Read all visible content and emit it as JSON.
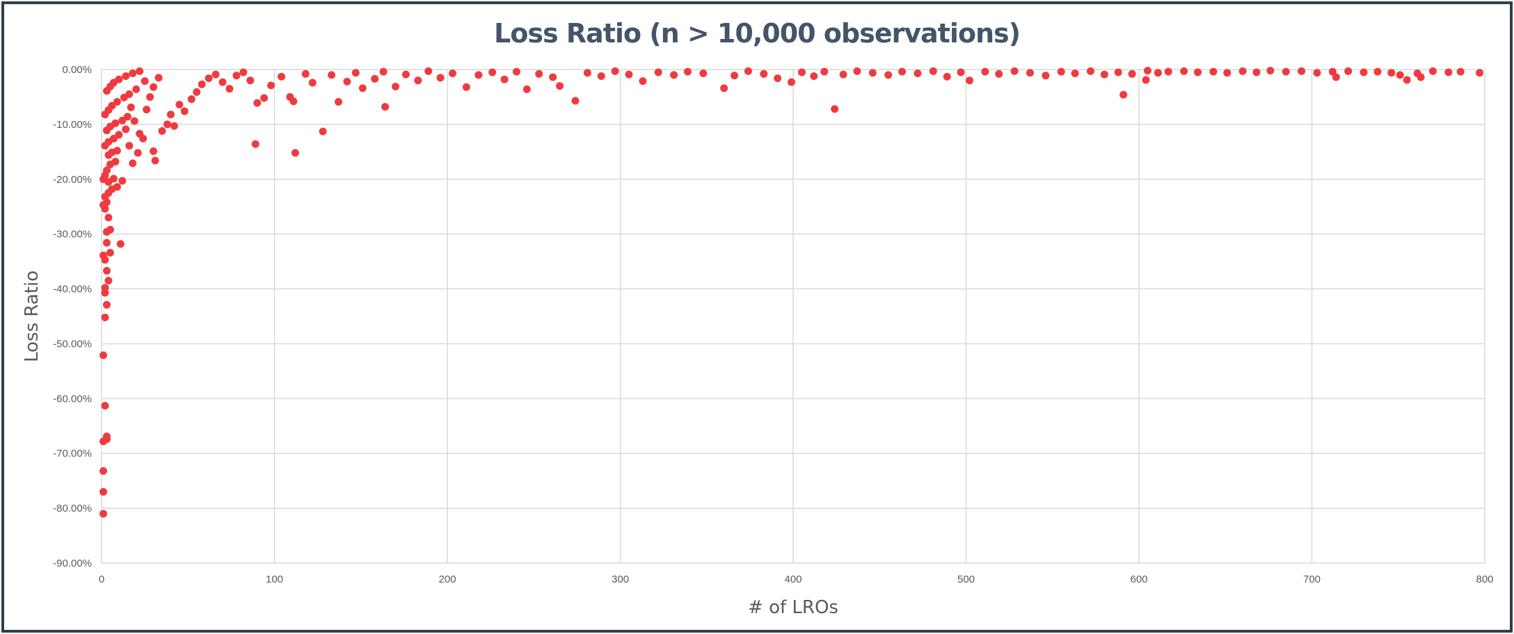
{
  "chart_data": {
    "type": "scatter",
    "title": "Loss Ratio (n > 10,000 observations)",
    "xlabel": "# of LROs",
    "ylabel": "Loss Ratio",
    "xlim": [
      0,
      800
    ],
    "ylim": [
      -90,
      0
    ],
    "x_ticks": [
      "0",
      "100",
      "200",
      "300",
      "400",
      "500",
      "600",
      "700",
      "800"
    ],
    "y_ticks": [
      "0.00%",
      "-10.00%",
      "-20.00%",
      "-30.00%",
      "-40.00%",
      "-50.00%",
      "-60.00%",
      "-70.00%",
      "-80.00%",
      "-90.00%"
    ],
    "grid": true,
    "legend": "none",
    "marker_color": "#ef3b3f",
    "series": [
      {
        "values": [
          [
            1,
            -81.0
          ],
          [
            1,
            -77.0
          ],
          [
            1,
            -73.2
          ],
          [
            1,
            -67.8
          ],
          [
            3,
            -67.4
          ],
          [
            3,
            -66.9
          ],
          [
            2,
            -61.3
          ],
          [
            1,
            -52.1
          ],
          [
            2,
            -45.2
          ],
          [
            3,
            -42.9
          ],
          [
            2,
            -40.7
          ],
          [
            2,
            -39.8
          ],
          [
            4,
            -38.5
          ],
          [
            3,
            -36.7
          ],
          [
            2,
            -34.7
          ],
          [
            1,
            -33.9
          ],
          [
            5,
            -33.4
          ],
          [
            11,
            -31.8
          ],
          [
            3,
            -31.6
          ],
          [
            5,
            -29.2
          ],
          [
            3,
            -29.6
          ],
          [
            4,
            -27.0
          ],
          [
            2,
            -25.4
          ],
          [
            1,
            -24.7
          ],
          [
            3,
            -24.2
          ],
          [
            2,
            -23.2
          ],
          [
            4,
            -22.5
          ],
          [
            6,
            -21.8
          ],
          [
            9,
            -21.4
          ],
          [
            1,
            -20.0
          ],
          [
            2,
            -19.3
          ],
          [
            4,
            -20.5
          ],
          [
            7,
            -19.9
          ],
          [
            12,
            -20.3
          ],
          [
            3,
            -18.4
          ],
          [
            5,
            -17.3
          ],
          [
            8,
            -16.8
          ],
          [
            4,
            -15.6
          ],
          [
            6,
            -15.1
          ],
          [
            9,
            -14.8
          ],
          [
            2,
            -13.9
          ],
          [
            4,
            -13.2
          ],
          [
            7,
            -12.6
          ],
          [
            10,
            -11.9
          ],
          [
            3,
            -11.1
          ],
          [
            5,
            -10.4
          ],
          [
            8,
            -9.8
          ],
          [
            12,
            -9.3
          ],
          [
            15,
            -8.6
          ],
          [
            2,
            -8.2
          ],
          [
            4,
            -7.4
          ],
          [
            6,
            -6.6
          ],
          [
            9,
            -5.9
          ],
          [
            13,
            -5.1
          ],
          [
            16,
            -4.5
          ],
          [
            3,
            -3.9
          ],
          [
            5,
            -3.1
          ],
          [
            7,
            -2.4
          ],
          [
            10,
            -1.8
          ],
          [
            14,
            -1.2
          ],
          [
            18,
            -0.7
          ],
          [
            22,
            -0.3
          ],
          [
            25,
            -2.1
          ],
          [
            20,
            -3.6
          ],
          [
            17,
            -6.9
          ],
          [
            19,
            -9.4
          ],
          [
            22,
            -11.7
          ],
          [
            24,
            -12.6
          ],
          [
            18,
            -17.1
          ],
          [
            21,
            -15.2
          ],
          [
            16,
            -13.9
          ],
          [
            14,
            -10.9
          ],
          [
            26,
            -7.3
          ],
          [
            28,
            -5.0
          ],
          [
            30,
            -3.2
          ],
          [
            33,
            -1.5
          ],
          [
            31,
            -16.6
          ],
          [
            30,
            -14.9
          ],
          [
            35,
            -11.2
          ],
          [
            38,
            -10.0
          ],
          [
            42,
            -10.3
          ],
          [
            40,
            -8.2
          ],
          [
            45,
            -6.4
          ],
          [
            48,
            -7.6
          ],
          [
            52,
            -5.4
          ],
          [
            55,
            -4.1
          ],
          [
            58,
            -2.7
          ],
          [
            62,
            -1.6
          ],
          [
            66,
            -0.9
          ],
          [
            70,
            -2.3
          ],
          [
            74,
            -3.5
          ],
          [
            78,
            -1.1
          ],
          [
            82,
            -0.5
          ],
          [
            86,
            -2.0
          ],
          [
            89,
            -13.6
          ],
          [
            90,
            -6.1
          ],
          [
            94,
            -5.2
          ],
          [
            98,
            -2.9
          ],
          [
            104,
            -1.3
          ],
          [
            109,
            -5.0
          ],
          [
            111,
            -5.8
          ],
          [
            112,
            -15.2
          ],
          [
            118,
            -0.8
          ],
          [
            122,
            -2.4
          ],
          [
            128,
            -11.3
          ],
          [
            133,
            -1.0
          ],
          [
            137,
            -5.9
          ],
          [
            142,
            -2.2
          ],
          [
            147,
            -0.6
          ],
          [
            151,
            -3.4
          ],
          [
            158,
            -1.7
          ],
          [
            163,
            -0.4
          ],
          [
            164,
            -6.8
          ],
          [
            170,
            -3.1
          ],
          [
            176,
            -0.9
          ],
          [
            183,
            -2.0
          ],
          [
            189,
            -0.3
          ],
          [
            196,
            -1.5
          ],
          [
            203,
            -0.7
          ],
          [
            211,
            -3.2
          ],
          [
            218,
            -1.0
          ],
          [
            226,
            -0.5
          ],
          [
            233,
            -1.8
          ],
          [
            240,
            -0.4
          ],
          [
            246,
            -3.6
          ],
          [
            253,
            -0.8
          ],
          [
            261,
            -1.4
          ],
          [
            265,
            -3.0
          ],
          [
            274,
            -5.7
          ],
          [
            281,
            -0.6
          ],
          [
            289,
            -1.2
          ],
          [
            297,
            -0.3
          ],
          [
            305,
            -0.9
          ],
          [
            313,
            -2.1
          ],
          [
            322,
            -0.5
          ],
          [
            331,
            -1.0
          ],
          [
            339,
            -0.4
          ],
          [
            348,
            -0.7
          ],
          [
            360,
            -3.4
          ],
          [
            366,
            -1.1
          ],
          [
            374,
            -0.3
          ],
          [
            383,
            -0.8
          ],
          [
            391,
            -1.6
          ],
          [
            399,
            -2.3
          ],
          [
            405,
            -0.5
          ],
          [
            412,
            -1.2
          ],
          [
            418,
            -0.4
          ],
          [
            424,
            -7.2
          ],
          [
            429,
            -0.9
          ],
          [
            437,
            -0.3
          ],
          [
            446,
            -0.6
          ],
          [
            455,
            -1.0
          ],
          [
            463,
            -0.4
          ],
          [
            472,
            -0.7
          ],
          [
            481,
            -0.3
          ],
          [
            489,
            -1.3
          ],
          [
            497,
            -0.5
          ],
          [
            502,
            -2.0
          ],
          [
            511,
            -0.4
          ],
          [
            519,
            -0.8
          ],
          [
            528,
            -0.3
          ],
          [
            537,
            -0.6
          ],
          [
            546,
            -1.1
          ],
          [
            555,
            -0.4
          ],
          [
            563,
            -0.7
          ],
          [
            572,
            -0.3
          ],
          [
            580,
            -0.9
          ],
          [
            588,
            -0.5
          ],
          [
            591,
            -4.6
          ],
          [
            596,
            -0.8
          ],
          [
            604,
            -1.9
          ],
          [
            605,
            -0.2
          ],
          [
            611,
            -0.6
          ],
          [
            617,
            -0.4
          ],
          [
            626,
            -0.3
          ],
          [
            634,
            -0.5
          ],
          [
            643,
            -0.4
          ],
          [
            651,
            -0.6
          ],
          [
            660,
            -0.3
          ],
          [
            668,
            -0.5
          ],
          [
            676,
            -0.2
          ],
          [
            685,
            -0.4
          ],
          [
            694,
            -0.3
          ],
          [
            703,
            -0.6
          ],
          [
            712,
            -0.4
          ],
          [
            714,
            -1.4
          ],
          [
            721,
            -0.3
          ],
          [
            730,
            -0.5
          ],
          [
            738,
            -0.4
          ],
          [
            746,
            -0.6
          ],
          [
            751,
            -1.0
          ],
          [
            755,
            -1.9
          ],
          [
            761,
            -0.7
          ],
          [
            763,
            -1.4
          ],
          [
            770,
            -0.3
          ],
          [
            779,
            -0.5
          ],
          [
            786,
            -0.4
          ],
          [
            797,
            -0.6
          ]
        ]
      }
    ]
  }
}
